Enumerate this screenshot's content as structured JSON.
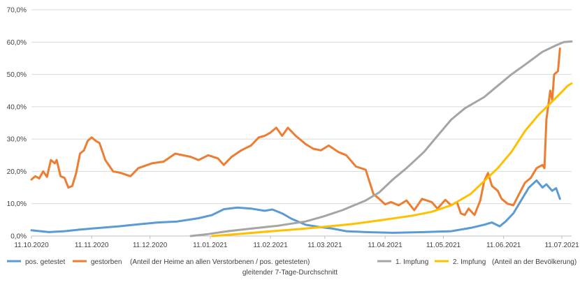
{
  "chart_data": {
    "type": "line",
    "x_type": "date",
    "xlim": [
      "2020-10-11",
      "2021-07-16"
    ],
    "ylim": [
      0,
      70
    ],
    "y_unit": "%",
    "grid": true,
    "y_ticks": [
      "0,0%",
      "10,0%",
      "20,0%",
      "30,0%",
      "40,0%",
      "50,0%",
      "60,0%",
      "70,0%"
    ],
    "x_ticks": [
      {
        "label": "11.10.2020",
        "date": "2020-10-11"
      },
      {
        "label": "11.11.2020",
        "date": "2020-11-11"
      },
      {
        "label": "11.12.2020",
        "date": "2020-12-11"
      },
      {
        "label": "11.01.2021",
        "date": "2021-01-11"
      },
      {
        "label": "11.02.2021",
        "date": "2021-02-11"
      },
      {
        "label": "11.03.2021",
        "date": "2021-03-11"
      },
      {
        "label": "11.04.2021",
        "date": "2021-04-11"
      },
      {
        "label": "11.05.2021",
        "date": "2021-05-11"
      },
      {
        "label": "11.06.2021",
        "date": "2021-06-11"
      },
      {
        "label": "11.07.2021",
        "date": "2021-07-11"
      }
    ],
    "series": [
      {
        "name": "pos. getestet",
        "color": "#5B9BD5",
        "points": [
          [
            "2020-10-11",
            1.8
          ],
          [
            "2020-10-20",
            1.2
          ],
          [
            "2020-10-28",
            1.5
          ],
          [
            "2020-11-05",
            2.0
          ],
          [
            "2020-11-15",
            2.5
          ],
          [
            "2020-11-25",
            3.0
          ],
          [
            "2020-12-05",
            3.6
          ],
          [
            "2020-12-15",
            4.2
          ],
          [
            "2020-12-25",
            4.5
          ],
          [
            "2021-01-05",
            5.5
          ],
          [
            "2021-01-12",
            6.5
          ],
          [
            "2021-01-18",
            8.3
          ],
          [
            "2021-01-25",
            8.8
          ],
          [
            "2021-02-01",
            8.5
          ],
          [
            "2021-02-08",
            7.8
          ],
          [
            "2021-02-12",
            8.2
          ],
          [
            "2021-02-17",
            7.0
          ],
          [
            "2021-02-22",
            5.3
          ],
          [
            "2021-03-01",
            3.5
          ],
          [
            "2021-03-08",
            2.8
          ],
          [
            "2021-03-15",
            2.3
          ],
          [
            "2021-03-22",
            1.5
          ],
          [
            "2021-04-01",
            1.2
          ],
          [
            "2021-04-15",
            1.0
          ],
          [
            "2021-05-01",
            1.2
          ],
          [
            "2021-05-15",
            1.5
          ],
          [
            "2021-05-25",
            2.5
          ],
          [
            "2021-06-01",
            3.5
          ],
          [
            "2021-06-05",
            4.2
          ],
          [
            "2021-06-09",
            3.0
          ],
          [
            "2021-06-12",
            4.5
          ],
          [
            "2021-06-16",
            7.0
          ],
          [
            "2021-06-20",
            11.0
          ],
          [
            "2021-06-24",
            15.0
          ],
          [
            "2021-06-28",
            17.2
          ],
          [
            "2021-07-01",
            15.0
          ],
          [
            "2021-07-03",
            16.0
          ],
          [
            "2021-07-06",
            14.0
          ],
          [
            "2021-07-08",
            14.8
          ],
          [
            "2021-07-10",
            11.5
          ]
        ]
      },
      {
        "name": "gestorben",
        "color": "#ED7D31",
        "points": [
          [
            "2020-10-11",
            17.5
          ],
          [
            "2020-10-13",
            18.5
          ],
          [
            "2020-10-15",
            17.8
          ],
          [
            "2020-10-17",
            20.0
          ],
          [
            "2020-10-19",
            18.3
          ],
          [
            "2020-10-21",
            23.5
          ],
          [
            "2020-10-23",
            22.5
          ],
          [
            "2020-10-24",
            23.5
          ],
          [
            "2020-10-26",
            18.5
          ],
          [
            "2020-10-28",
            18.0
          ],
          [
            "2020-10-30",
            15.0
          ],
          [
            "2020-11-01",
            15.5
          ],
          [
            "2020-11-03",
            19.5
          ],
          [
            "2020-11-05",
            25.5
          ],
          [
            "2020-11-07",
            26.5
          ],
          [
            "2020-11-09",
            29.5
          ],
          [
            "2020-11-11",
            30.5
          ],
          [
            "2020-11-13",
            29.5
          ],
          [
            "2020-11-15",
            28.8
          ],
          [
            "2020-11-18",
            23.5
          ],
          [
            "2020-11-22",
            20.0
          ],
          [
            "2020-11-26",
            19.5
          ],
          [
            "2020-12-01",
            18.5
          ],
          [
            "2020-12-05",
            21.0
          ],
          [
            "2020-12-12",
            22.5
          ],
          [
            "2020-12-18",
            23.0
          ],
          [
            "2020-12-24",
            25.5
          ],
          [
            "2021-01-01",
            24.5
          ],
          [
            "2021-01-05",
            23.5
          ],
          [
            "2021-01-10",
            25.0
          ],
          [
            "2021-01-15",
            24.0
          ],
          [
            "2021-01-18",
            22.0
          ],
          [
            "2021-01-22",
            24.5
          ],
          [
            "2021-01-27",
            26.5
          ],
          [
            "2021-02-01",
            28.0
          ],
          [
            "2021-02-05",
            30.5
          ],
          [
            "2021-02-08",
            31.0
          ],
          [
            "2021-02-11",
            32.0
          ],
          [
            "2021-02-14",
            33.5
          ],
          [
            "2021-02-17",
            31.0
          ],
          [
            "2021-02-20",
            33.5
          ],
          [
            "2021-02-24",
            31.0
          ],
          [
            "2021-03-01",
            28.5
          ],
          [
            "2021-03-05",
            27.0
          ],
          [
            "2021-03-09",
            26.5
          ],
          [
            "2021-03-13",
            28.0
          ],
          [
            "2021-03-18",
            26.0
          ],
          [
            "2021-03-22",
            25.0
          ],
          [
            "2021-03-27",
            21.5
          ],
          [
            "2021-04-01",
            20.5
          ],
          [
            "2021-04-05",
            13.0
          ],
          [
            "2021-04-08",
            11.5
          ],
          [
            "2021-04-11",
            9.8
          ],
          [
            "2021-04-14",
            10.5
          ],
          [
            "2021-04-18",
            9.5
          ],
          [
            "2021-04-22",
            11.0
          ],
          [
            "2021-04-26",
            8.0
          ],
          [
            "2021-04-30",
            11.5
          ],
          [
            "2021-05-05",
            10.5
          ],
          [
            "2021-05-08",
            8.5
          ],
          [
            "2021-05-12",
            11.2
          ],
          [
            "2021-05-15",
            9.5
          ],
          [
            "2021-05-18",
            10.5
          ],
          [
            "2021-05-20",
            7.0
          ],
          [
            "2021-05-22",
            6.5
          ],
          [
            "2021-05-24",
            8.5
          ],
          [
            "2021-05-27",
            6.5
          ],
          [
            "2021-05-30",
            11.0
          ],
          [
            "2021-06-01",
            17.0
          ],
          [
            "2021-06-03",
            19.5
          ],
          [
            "2021-06-05",
            15.5
          ],
          [
            "2021-06-08",
            14.0
          ],
          [
            "2021-06-10",
            11.5
          ],
          [
            "2021-06-13",
            10.0
          ],
          [
            "2021-06-16",
            9.5
          ],
          [
            "2021-06-19",
            13.0
          ],
          [
            "2021-06-22",
            16.5
          ],
          [
            "2021-06-25",
            18.0
          ],
          [
            "2021-06-28",
            21.0
          ],
          [
            "2021-07-01",
            22.0
          ],
          [
            "2021-07-02",
            21.0
          ],
          [
            "2021-07-03",
            36.0
          ],
          [
            "2021-07-05",
            45.0
          ],
          [
            "2021-07-06",
            42.0
          ],
          [
            "2021-07-07",
            50.0
          ],
          [
            "2021-07-09",
            51.0
          ],
          [
            "2021-07-10",
            58.0
          ]
        ]
      },
      {
        "name": "1. Impfung",
        "color": "#A5A5A5",
        "points": [
          [
            "2021-01-01",
            0.0
          ],
          [
            "2021-01-10",
            0.6
          ],
          [
            "2021-01-20",
            1.5
          ],
          [
            "2021-02-01",
            2.3
          ],
          [
            "2021-02-15",
            3.2
          ],
          [
            "2021-03-01",
            4.5
          ],
          [
            "2021-03-10",
            6.0
          ],
          [
            "2021-03-20",
            8.0
          ],
          [
            "2021-04-01",
            11.0
          ],
          [
            "2021-04-08",
            13.5
          ],
          [
            "2021-04-15",
            17.5
          ],
          [
            "2021-04-22",
            21.0
          ],
          [
            "2021-05-01",
            26.0
          ],
          [
            "2021-05-08",
            31.0
          ],
          [
            "2021-05-15",
            36.0
          ],
          [
            "2021-05-22",
            39.5
          ],
          [
            "2021-06-01",
            43.0
          ],
          [
            "2021-06-08",
            46.5
          ],
          [
            "2021-06-15",
            50.0
          ],
          [
            "2021-06-22",
            53.0
          ],
          [
            "2021-07-01",
            57.0
          ],
          [
            "2021-07-08",
            59.0
          ],
          [
            "2021-07-12",
            60.0
          ],
          [
            "2021-07-16",
            60.2
          ]
        ]
      },
      {
        "name": "2. Impfung",
        "color": "#FFC000",
        "points": [
          [
            "2021-01-12",
            0.0
          ],
          [
            "2021-01-25",
            0.6
          ],
          [
            "2021-02-10",
            1.4
          ],
          [
            "2021-02-25",
            2.1
          ],
          [
            "2021-03-10",
            2.8
          ],
          [
            "2021-03-25",
            3.7
          ],
          [
            "2021-04-10",
            5.0
          ],
          [
            "2021-04-25",
            6.3
          ],
          [
            "2021-05-05",
            7.5
          ],
          [
            "2021-05-15",
            9.5
          ],
          [
            "2021-05-25",
            13.0
          ],
          [
            "2021-06-01",
            17.0
          ],
          [
            "2021-06-08",
            21.0
          ],
          [
            "2021-06-15",
            26.0
          ],
          [
            "2021-06-22",
            32.5
          ],
          [
            "2021-06-29",
            37.5
          ],
          [
            "2021-07-05",
            41.0
          ],
          [
            "2021-07-10",
            44.0
          ],
          [
            "2021-07-14",
            46.5
          ],
          [
            "2021-07-16",
            47.2
          ]
        ]
      }
    ],
    "legend": [
      {
        "label": "pos. getestet",
        "color": "#5B9BD5"
      },
      {
        "label": "gestorben",
        "color": "#ED7D31"
      },
      {
        "label": "1. Impfung",
        "color": "#A5A5A5"
      },
      {
        "label": "2. Impfung",
        "color": "#FFC000"
      }
    ],
    "legend_notes": {
      "heime": "(Anteil der Heime an allen Verstorbenen / pos. getesteten)",
      "bevoelkerung": "(Anteil an der Bevölkerung)"
    },
    "footnote": "gleitender 7-Tage-Durchschnitt"
  }
}
